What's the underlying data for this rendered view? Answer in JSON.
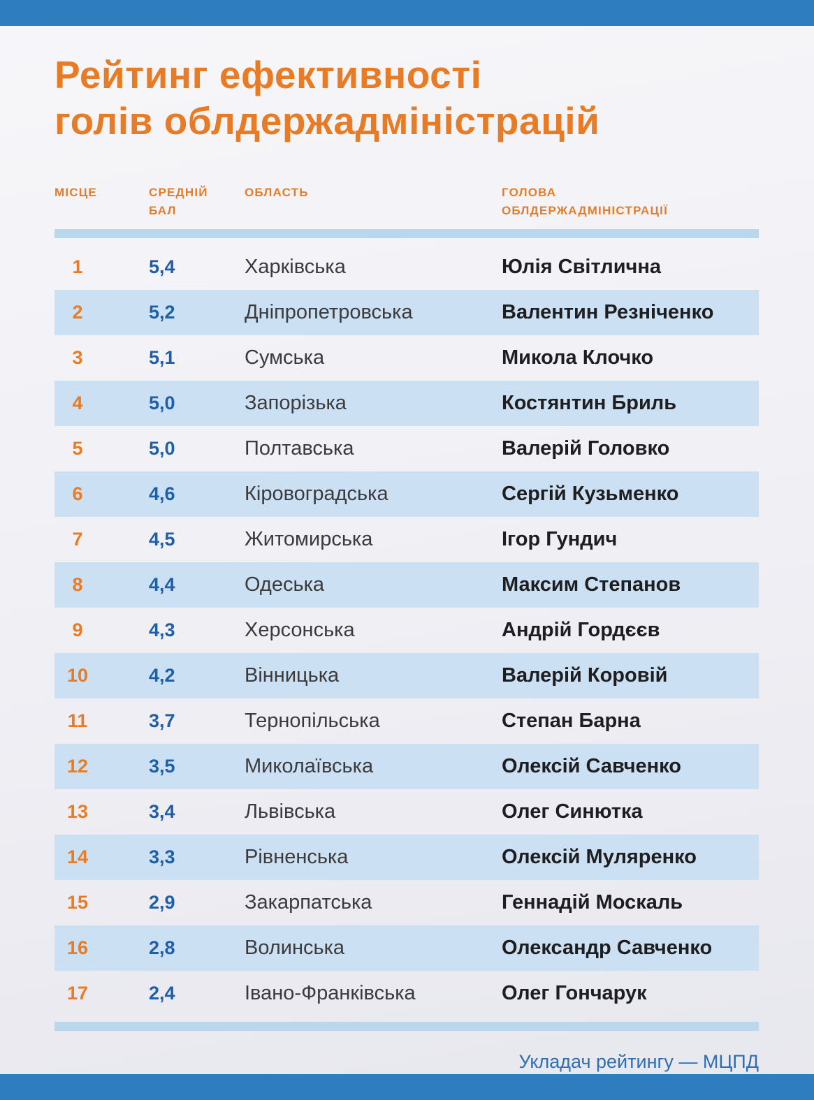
{
  "title": {
    "line1": "Рейтинг ефективності",
    "line2": "голів облдержадміністрацій"
  },
  "header": {
    "place": "МІСЦЕ",
    "score_line1": "СРЕДНІЙ",
    "score_line2": "БАЛ",
    "region": "ОБЛАСТЬ",
    "head_line1": "ГОЛОВА",
    "head_line2": "ОБЛДЕРЖАДМІНІСТРАЦІЇ"
  },
  "rows": [
    {
      "rank": "1",
      "score": "5,4",
      "region": "Харківська",
      "head": "Юлія Світлична"
    },
    {
      "rank": "2",
      "score": "5,2",
      "region": "Дніпропетровська",
      "head": "Валентин Резніченко"
    },
    {
      "rank": "3",
      "score": "5,1",
      "region": "Сумська",
      "head": "Микола Клочко"
    },
    {
      "rank": "4",
      "score": "5,0",
      "region": "Запорізька",
      "head": "Костянтин Бриль"
    },
    {
      "rank": "5",
      "score": "5,0",
      "region": "Полтавська",
      "head": "Валерій Головко"
    },
    {
      "rank": "6",
      "score": "4,6",
      "region": "Кіровоградська",
      "head": "Сергій Кузьменко"
    },
    {
      "rank": "7",
      "score": "4,5",
      "region": "Житомирська",
      "head": "Ігор Гундич"
    },
    {
      "rank": "8",
      "score": "4,4",
      "region": "Одеська",
      "head": "Максим Степанов"
    },
    {
      "rank": "9",
      "score": "4,3",
      "region": "Херсонська",
      "head": "Андрій Гордєєв"
    },
    {
      "rank": "10",
      "score": "4,2",
      "region": "Вінницька",
      "head": "Валерій Коровій"
    },
    {
      "rank": "11",
      "score": "3,7",
      "region": "Тернопільська",
      "head": "Степан Барна"
    },
    {
      "rank": "12",
      "score": "3,5",
      "region": "Миколаївська",
      "head": "Олексій Савченко"
    },
    {
      "rank": "13",
      "score": "3,4",
      "region": "Львівська",
      "head": "Олег Синютка"
    },
    {
      "rank": "14",
      "score": "3,3",
      "region": "Рівненська",
      "head": "Олексій Муляренко"
    },
    {
      "rank": "15",
      "score": "2,9",
      "region": "Закарпатська",
      "head": "Геннадій Москаль"
    },
    {
      "rank": "16",
      "score": "2,8",
      "region": "Волинська",
      "head": "Олександр Савченко"
    },
    {
      "rank": "17",
      "score": "2,4",
      "region": "Івано-Франківська",
      "head": "Олег Гончарук"
    }
  ],
  "footer": "Укладач рейтингу — МЦПД",
  "colors": {
    "accent_orange": "#e87c26",
    "score_blue": "#1f5fa8",
    "bar_blue": "#2e7dbf",
    "row_alt_blue": "#cbe1f3",
    "separator_blue": "#b9d8ee",
    "footer_blue": "#2e6fb4"
  },
  "chart_data": {
    "type": "table",
    "title": "Рейтинг ефективності голів облдержадміністрацій",
    "columns": [
      "МІСЦЕ",
      "СРЕДНІЙ БАЛ",
      "ОБЛАСТЬ",
      "ГОЛОВА ОБЛДЕРЖАДМІНІСТРАЦІЇ"
    ],
    "rows": [
      [
        1,
        5.4,
        "Харківська",
        "Юлія Світлична"
      ],
      [
        2,
        5.2,
        "Дніпропетровська",
        "Валентин Резніченко"
      ],
      [
        3,
        5.1,
        "Сумська",
        "Микола Клочко"
      ],
      [
        4,
        5.0,
        "Запорізька",
        "Костянтин Бриль"
      ],
      [
        5,
        5.0,
        "Полтавська",
        "Валерій Головко"
      ],
      [
        6,
        4.6,
        "Кіровоградська",
        "Сергій Кузьменко"
      ],
      [
        7,
        4.5,
        "Житомирська",
        "Ігор Гундич"
      ],
      [
        8,
        4.4,
        "Одеська",
        "Максим Степанов"
      ],
      [
        9,
        4.3,
        "Херсонська",
        "Андрій Гордєєв"
      ],
      [
        10,
        4.2,
        "Вінницька",
        "Валерій Коровій"
      ],
      [
        11,
        3.7,
        "Тернопільська",
        "Степан Барна"
      ],
      [
        12,
        3.5,
        "Миколаївська",
        "Олексій Савченко"
      ],
      [
        13,
        3.4,
        "Львівська",
        "Олег Синютка"
      ],
      [
        14,
        3.3,
        "Рівненська",
        "Олексій Муляренко"
      ],
      [
        15,
        2.9,
        "Закарпатська",
        "Геннадій Москаль"
      ],
      [
        16,
        2.8,
        "Волинська",
        "Олександр Савченко"
      ],
      [
        17,
        2.4,
        "Івано-Франківська",
        "Олег Гончарук"
      ]
    ],
    "footer_note": "Укладач рейтингу — МЦПД"
  }
}
